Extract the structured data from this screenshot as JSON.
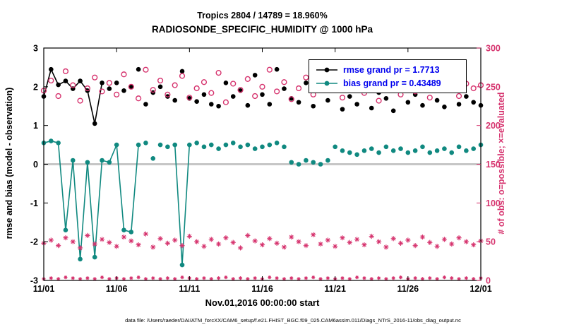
{
  "chart_data": {
    "type": "line",
    "title_line1": "Tropics 2804 / 14789 = 18.960%",
    "title_line2": "RADIOSONDE_SPECIFIC_HUMIDITY @ 1000 hPa",
    "xlabel": "Nov.01,2016 00:00:00 start",
    "ylabel_left": "rmse and bias (model - observation)",
    "ylabel_right": "# of obs: o=possible; ×=evaluated",
    "caption": "data file: /Users/raeder/DAI/ATM_forcXX/CAM6_setup/f.e21.FHIST_BGC.f09_025.CAM6assim.011/Diags_NTrS_2016-11/obs_diag_output.nc",
    "xlim": [
      0,
      30
    ],
    "x_ticks": [
      {
        "value": 0,
        "label": "11/01"
      },
      {
        "value": 5,
        "label": "11/06"
      },
      {
        "value": 10,
        "label": "11/11"
      },
      {
        "value": 15,
        "label": "11/16"
      },
      {
        "value": 20,
        "label": "11/21"
      },
      {
        "value": 25,
        "label": "11/26"
      },
      {
        "value": 30,
        "label": "12/01"
      }
    ],
    "ylim_left": [
      -3,
      3
    ],
    "yticks_left": [
      -3,
      -2,
      -1,
      0,
      1,
      2,
      3
    ],
    "ylim_right": [
      0,
      300
    ],
    "yticks_right": [
      0,
      50,
      100,
      150,
      200,
      250,
      300
    ],
    "x_days": [
      0,
      0.5,
      1,
      1.5,
      2,
      2.5,
      3,
      3.5,
      4,
      4.5,
      5,
      5.5,
      6,
      6.5,
      7,
      7.5,
      8,
      8.5,
      9,
      9.5,
      10,
      10.5,
      11,
      11.5,
      12,
      12.5,
      13,
      13.5,
      14,
      14.5,
      15,
      15.5,
      16,
      16.5,
      17,
      17.5,
      18,
      18.5,
      19,
      19.5,
      20,
      20.5,
      21,
      21.5,
      22,
      22.5,
      23,
      23.5,
      24,
      24.5,
      25,
      25.5,
      26,
      26.5,
      27,
      27.5,
      28,
      28.5,
      29,
      29.5,
      30
    ],
    "series": [
      {
        "name": "rmse",
        "axis": "left",
        "color": "#000000",
        "marker": "dot",
        "marker_size": 3.3,
        "line_segments": [
          [
            0,
            8
          ]
        ],
        "values": [
          1.75,
          2.45,
          2.05,
          2.15,
          1.95,
          2.15,
          1.9,
          1.05,
          2.1,
          1.95,
          2.1,
          1.9,
          2.0,
          2.45,
          1.55,
          1.85,
          2.0,
          1.75,
          1.65,
          2.4,
          1.7,
          1.62,
          1.8,
          1.55,
          1.5,
          2.1,
          1.75,
          1.9,
          1.52,
          2.3,
          1.8,
          1.55,
          2.45,
          1.95,
          1.7,
          1.6,
          2.1,
          1.5,
          1.9,
          1.65,
          2.2,
          1.42,
          1.75,
          1.55,
          2.0,
          1.45,
          1.85,
          1.7,
          1.38,
          1.95,
          1.6,
          1.8,
          1.52,
          2.1,
          1.65,
          1.48,
          1.9,
          1.55,
          1.75,
          1.6,
          1.52
        ]
      },
      {
        "name": "bias",
        "axis": "left",
        "color": "#108980",
        "marker": "dot",
        "marker_size": 3.3,
        "line_segments": [
          [
            0,
            13
          ],
          [
            18,
            20
          ]
        ],
        "values": [
          0.55,
          0.6,
          0.55,
          -1.7,
          0.1,
          -2.45,
          0.05,
          -2.4,
          0.1,
          0.05,
          0.5,
          -1.7,
          -1.75,
          0.5,
          0.55,
          0.15,
          0.5,
          0.45,
          0.5,
          -2.6,
          0.5,
          0.55,
          0.45,
          0.5,
          0.4,
          0.5,
          0.55,
          0.45,
          0.5,
          0.4,
          0.45,
          0.5,
          0.55,
          0.45,
          0.05,
          0.0,
          0.1,
          0.05,
          0.0,
          0.1,
          0.45,
          0.35,
          0.3,
          0.25,
          0.35,
          0.4,
          0.3,
          0.45,
          0.35,
          0.4,
          0.3,
          0.35,
          0.45,
          0.3,
          0.35,
          0.4,
          0.3,
          0.45,
          0.35,
          0.4,
          0.5
        ]
      },
      {
        "name": "possible-obs",
        "axis": "right",
        "color": "#d6336e",
        "marker": "open-circle",
        "marker_size": 3.4,
        "line_segments": [],
        "values": [
          245,
          258,
          238,
          270,
          252,
          232,
          248,
          262,
          244,
          255,
          240,
          266,
          250,
          235,
          272,
          246,
          258,
          240,
          252,
          264,
          236,
          248,
          256,
          242,
          268,
          230,
          254,
          246,
          260,
          238,
          250,
          272,
          244,
          256,
          234,
          248,
          262,
          240,
          252,
          246,
          266,
          236,
          250,
          258,
          242,
          254,
          232,
          248,
          264,
          240,
          252,
          244,
          258,
          236,
          250,
          262,
          246,
          238,
          254,
          248,
          252
        ]
      },
      {
        "name": "evaluated-obs",
        "axis": "right",
        "color": "#d6336e",
        "marker": "asterisk",
        "marker_size": 3.6,
        "line_segments": [],
        "values": [
          48,
          52,
          45,
          55,
          50,
          42,
          58,
          47,
          53,
          49,
          44,
          56,
          51,
          46,
          60,
          43,
          54,
          48,
          52,
          45,
          57,
          50,
          44,
          53,
          47,
          55,
          49,
          42,
          58,
          51,
          46,
          54,
          48,
          43,
          56,
          50,
          45,
          59,
          47,
          52,
          44,
          55,
          49,
          53,
          46,
          57,
          50,
          43,
          54,
          48,
          52,
          45,
          56,
          49,
          44,
          53,
          47,
          55,
          50,
          46,
          51
        ]
      },
      {
        "name": "bottom-row-obs",
        "axis": "right",
        "color": "#d6336e",
        "marker": "asterisk",
        "marker_size": 2.6,
        "line_segments": [],
        "values": [
          2,
          3,
          2,
          4,
          3,
          2,
          3,
          2,
          4,
          2,
          3,
          2,
          3,
          4,
          2,
          3,
          2,
          3,
          2,
          4,
          3,
          2,
          3,
          2,
          3,
          4,
          2,
          3,
          2,
          3,
          2,
          4,
          3,
          2,
          3,
          2,
          3,
          4,
          2,
          3,
          2,
          3,
          2,
          4,
          3,
          2,
          3,
          2,
          3,
          4,
          2,
          3,
          2,
          3,
          2,
          4,
          3,
          2,
          3,
          2,
          3
        ]
      }
    ],
    "legend": [
      {
        "label": "rmse grand pr = 1.7713",
        "color": "#000000"
      },
      {
        "label": "bias grand pr = 0.43489",
        "color": "#108980"
      }
    ],
    "legend_text_color": "#0000ee",
    "zero_line_color": "#c6c6c6",
    "colors": {
      "rmse": "#000000",
      "bias": "#108980",
      "obs": "#d6336e"
    }
  }
}
